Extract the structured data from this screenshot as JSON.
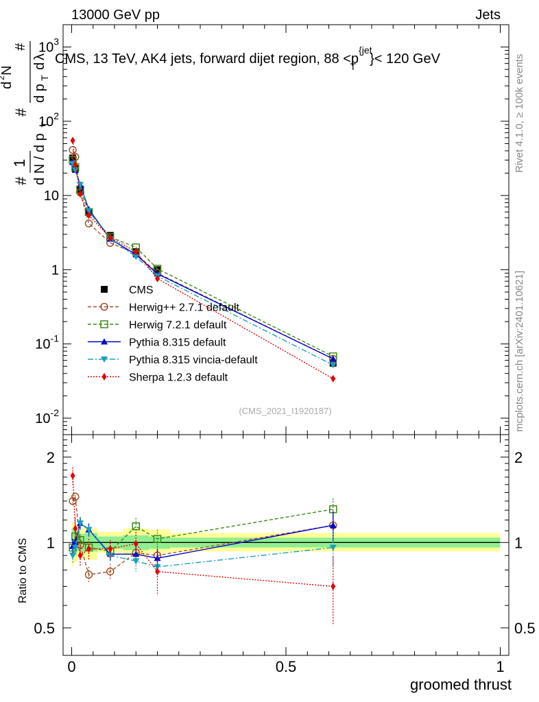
{
  "header": {
    "left": "13000 GeV pp",
    "right": "Jets",
    "title": "CMS, 13 TeV, AK4 jets, forward dijet region, 88 <p",
    "title_sup": "{jet",
    "title_sub": "T",
    "title_tail": "}< 120 GeV"
  },
  "side": {
    "rivet": "Rivet 4.1.0, ≥ 100k events",
    "mcplots": "mcplots.cern.ch [arXiv:2401.10621]"
  },
  "watermark": "(CMS_2021_I1920187)",
  "colors": {
    "cms": "#000000",
    "herwigpp": "#a0522d",
    "herwig7": "#3b8a15",
    "pythia": "#0000cc",
    "vincia": "#1a9fbd",
    "sherpa": "#e60000",
    "band_inner": "#90ee90",
    "band_outer": "#ffff99"
  },
  "legend": [
    {
      "key": "cms",
      "label": "CMS"
    },
    {
      "key": "herwigpp",
      "label": "Herwig++ 2.7.1 default"
    },
    {
      "key": "herwig7",
      "label": "Herwig 7.2.1 default"
    },
    {
      "key": "pythia",
      "label": "Pythia 8.315 default"
    },
    {
      "key": "vincia",
      "label": "Pythia 8.315 vincia-default"
    },
    {
      "key": "sherpa",
      "label": "Sherpa 1.2.3 default"
    }
  ],
  "chart_data": [
    {
      "type": "scatter",
      "panel": "main",
      "ylabel": "1 / dN/dp_T · d²N / (dp_T dλ)",
      "yscale": "log",
      "xlim": [
        -0.02,
        1.02
      ],
      "ylim": [
        0.006,
        2000
      ],
      "y_ticks": [
        {
          "v": 0.01,
          "label": "10",
          "sup": "-2"
        },
        {
          "v": 0.1,
          "label": "10",
          "sup": "-1"
        },
        {
          "v": 1,
          "label": "1",
          "sup": ""
        },
        {
          "v": 10,
          "label": "10",
          "sup": ""
        },
        {
          "v": 100,
          "label": "10",
          "sup": "2"
        },
        {
          "v": 1000,
          "label": "10",
          "sup": "3"
        }
      ],
      "x": [
        0.0025,
        0.0085,
        0.02,
        0.04,
        0.09,
        0.15,
        0.2,
        0.61
      ],
      "series": [
        {
          "key": "cms",
          "marker": "square",
          "dash": "",
          "values": [
            32,
            23,
            12,
            5.9,
            2.9,
            1.75,
            1.0,
            0.055
          ]
        },
        {
          "key": "herwigpp",
          "marker": "circle-open",
          "dash": "5,3",
          "values": [
            41,
            33,
            11,
            4.2,
            2.3,
            1.65,
            0.9,
            0.063
          ]
        },
        {
          "key": "herwig7",
          "marker": "square-open",
          "dash": "5,3",
          "values": [
            30,
            24,
            12,
            6.0,
            2.75,
            2.0,
            1.03,
            0.068
          ]
        },
        {
          "key": "pythia",
          "marker": "triangle-up",
          "dash": "",
          "values": [
            28,
            22,
            14,
            6.5,
            2.6,
            1.6,
            0.88,
            0.063
          ]
        },
        {
          "key": "vincia",
          "marker": "triangle-down",
          "dash": "8,3,2,3",
          "values": [
            27,
            22,
            14,
            6.2,
            2.6,
            1.5,
            0.82,
            0.052
          ]
        },
        {
          "key": "sherpa",
          "marker": "diamond",
          "dash": "2,2",
          "values": [
            55,
            26,
            10.5,
            5.4,
            2.7,
            1.75,
            0.76,
            0.034
          ]
        }
      ]
    },
    {
      "type": "scatter",
      "panel": "ratio",
      "ylabel": "Ratio to CMS",
      "xlabel": "groomed thrust",
      "yscale": "log",
      "xlim": [
        -0.02,
        1.02
      ],
      "ylim": [
        0.4,
        2.4
      ],
      "y_ticks": [
        {
          "v": 0.5,
          "label": "0.5"
        },
        {
          "v": 1,
          "label": "1"
        },
        {
          "v": 2,
          "label": "2"
        }
      ],
      "x_ticks": [
        {
          "v": 0,
          "label": "0"
        },
        {
          "v": 0.5,
          "label": "0.5"
        },
        {
          "v": 1,
          "label": "1"
        }
      ],
      "x": [
        0.0025,
        0.0085,
        0.02,
        0.04,
        0.09,
        0.15,
        0.2,
        0.61
      ],
      "bands": [
        {
          "x0": 0.0,
          "x1": 0.005,
          "inner": [
            0.88,
            1.12
          ],
          "outer": [
            0.82,
            1.18
          ]
        },
        {
          "x0": 0.005,
          "x1": 0.012,
          "inner": [
            0.9,
            1.1
          ],
          "outer": [
            0.85,
            1.16
          ]
        },
        {
          "x0": 0.012,
          "x1": 0.03,
          "inner": [
            0.93,
            1.07
          ],
          "outer": [
            0.88,
            1.12
          ]
        },
        {
          "x0": 0.03,
          "x1": 0.06,
          "inner": [
            0.93,
            1.08
          ],
          "outer": [
            0.87,
            1.12
          ]
        },
        {
          "x0": 0.06,
          "x1": 0.12,
          "inner": [
            0.95,
            1.05
          ],
          "outer": [
            0.92,
            1.09
          ]
        },
        {
          "x0": 0.12,
          "x1": 0.18,
          "inner": [
            0.94,
            1.06
          ],
          "outer": [
            0.9,
            1.12
          ]
        },
        {
          "x0": 0.18,
          "x1": 0.23,
          "inner": [
            0.95,
            1.05
          ],
          "outer": [
            0.92,
            1.11
          ]
        },
        {
          "x0": 0.23,
          "x1": 1.0,
          "inner": [
            0.96,
            1.04
          ],
          "outer": [
            0.93,
            1.08
          ]
        }
      ],
      "series": [
        {
          "key": "herwigpp",
          "marker": "circle-open",
          "dash": "5,3",
          "values": [
            1.4,
            1.45,
            0.98,
            0.77,
            0.79,
            0.92,
            0.9,
            1.15
          ],
          "err": [
            0.05,
            0.05,
            0.05,
            0.05,
            0.05,
            0.06,
            0.07,
            0.12
          ]
        },
        {
          "key": "herwig7",
          "marker": "square-open",
          "dash": "5,3",
          "values": [
            0.96,
            1.05,
            1.02,
            0.96,
            0.93,
            1.14,
            1.03,
            1.31
          ],
          "err": [
            0.05,
            0.05,
            0.05,
            0.05,
            0.05,
            0.08,
            0.08,
            0.12
          ]
        },
        {
          "key": "pythia",
          "marker": "triangle-up",
          "dash": "",
          "values": [
            0.97,
            1.0,
            1.17,
            1.11,
            0.91,
            0.91,
            0.88,
            1.15
          ],
          "err": [
            0.06,
            0.05,
            0.06,
            0.06,
            0.05,
            0.07,
            0.07,
            0.14
          ]
        },
        {
          "key": "vincia",
          "marker": "triangle-down",
          "dash": "8,3,2,3",
          "values": [
            0.9,
            0.96,
            1.17,
            1.11,
            0.9,
            0.86,
            0.82,
            0.96
          ],
          "err": [
            0.06,
            0.05,
            0.06,
            0.06,
            0.05,
            0.07,
            0.07,
            0.14
          ]
        },
        {
          "key": "sherpa",
          "marker": "diamond",
          "dash": "2,2",
          "values": [
            1.72,
            1.12,
            0.9,
            0.95,
            0.95,
            0.99,
            0.79,
            0.7
          ],
          "err": [
            0.12,
            0.1,
            0.08,
            0.08,
            0.07,
            0.1,
            0.14,
            0.19
          ]
        }
      ]
    }
  ]
}
